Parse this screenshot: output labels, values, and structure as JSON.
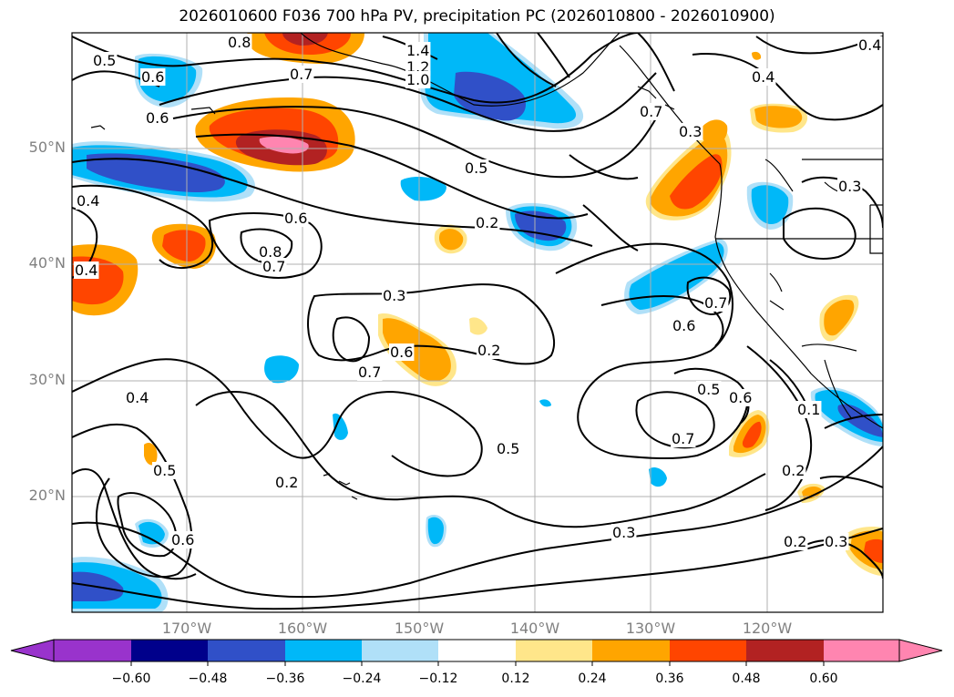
{
  "title": "2026010600 F036 700 hPa PV, precipitation PC (2026010800 - 2026010900)",
  "lat_labels": [
    "50°N",
    "40°N",
    "30°N",
    "20°N"
  ],
  "lon_labels": [
    "170°W",
    "160°W",
    "150°W",
    "140°W",
    "130°W",
    "120°W"
  ],
  "colorbar": {
    "ticks": [
      "−0.60",
      "−0.48",
      "−0.36",
      "−0.24",
      "−0.12",
      "0.12",
      "0.24",
      "0.36",
      "0.48",
      "0.60"
    ],
    "colors": [
      "#9933cc",
      "#00008b",
      "#3050c8",
      "#00b8f8",
      "#b0e0f8",
      "#ffffff",
      "#ffe68a",
      "#ffa500",
      "#ff4500",
      "#b22222",
      "#ff85b0",
      "#ff85b0"
    ]
  },
  "contour_labels": [
    "0.5",
    "0.6",
    "0.8",
    "1.4",
    "1.2",
    "1.0",
    "0.7",
    "0.4",
    "0.6",
    "0.5",
    "0.2",
    "0.4",
    "0.3",
    "0.4",
    "0.6",
    "0.8",
    "0.7",
    "0.3",
    "0.2",
    "0.6",
    "0.7",
    "0.7",
    "0.6",
    "0.4",
    "0.5",
    "0.2",
    "0.5",
    "0.6",
    "0.6",
    "0.5",
    "0.7",
    "0.2",
    "0.3",
    "0.2",
    "0.3",
    "0.1",
    "0.3",
    "0.4",
    "0.7"
  ]
}
